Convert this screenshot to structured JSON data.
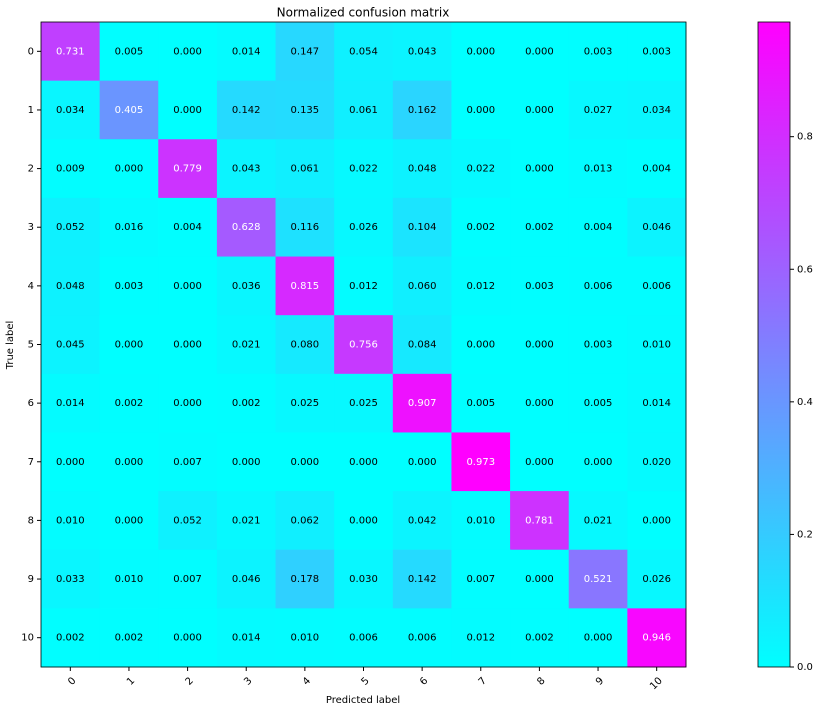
{
  "chart_data": {
    "type": "heatmap",
    "title": "Normalized confusion matrix",
    "xlabel": "Predicted label",
    "ylabel": "True label",
    "x_categories": [
      "0",
      "1",
      "2",
      "3",
      "4",
      "5",
      "6",
      "7",
      "8",
      "9",
      "10"
    ],
    "y_categories": [
      "0",
      "1",
      "2",
      "3",
      "4",
      "5",
      "6",
      "7",
      "8",
      "9",
      "10"
    ],
    "values": [
      [
        0.731,
        0.005,
        0,
        0.014,
        0.147,
        0.054,
        0.043,
        0,
        0,
        0.003,
        0.003
      ],
      [
        0.034,
        0.405,
        0,
        0.142,
        0.135,
        0.061,
        0.162,
        0,
        0,
        0.027,
        0.034
      ],
      [
        0.009,
        0,
        0.779,
        0.043,
        0.061,
        0.022,
        0.048,
        0.022,
        0,
        0.013,
        0.004
      ],
      [
        0.052,
        0.016,
        0.004,
        0.628,
        0.116,
        0.026,
        0.104,
        0.002,
        0.002,
        0.004,
        0.046
      ],
      [
        0.048,
        0.003,
        0,
        0.036,
        0.815,
        0.012,
        0.06,
        0.012,
        0.003,
        0.006,
        0.006
      ],
      [
        0.045,
        0,
        0,
        0.021,
        0.08,
        0.756,
        0.084,
        0,
        0,
        0.003,
        0.01
      ],
      [
        0.014,
        0.002,
        0,
        0.002,
        0.025,
        0.025,
        0.907,
        0.005,
        0,
        0.005,
        0.014
      ],
      [
        0,
        0,
        0.007,
        0,
        0,
        0,
        0,
        0.973,
        0,
        0,
        0.02
      ],
      [
        0.01,
        0,
        0.052,
        0.021,
        0.062,
        0,
        0.042,
        0.01,
        0.781,
        0.021,
        0
      ],
      [
        0.033,
        0.01,
        0.007,
        0.046,
        0.178,
        0.03,
        0.142,
        0.007,
        0,
        0.521,
        0.026
      ],
      [
        0.002,
        0.002,
        0,
        0.014,
        0.01,
        0.006,
        0.006,
        0.012,
        0.002,
        0,
        0.946
      ]
    ],
    "value_labels": [
      [
        "0.731",
        "0.005",
        "0.000",
        "0.014",
        "0.147",
        "0.054",
        "0.043",
        "0.000",
        "0.000",
        "0.003",
        "0.003"
      ],
      [
        "0.034",
        "0.405",
        "0.000",
        "0.142",
        "0.135",
        "0.061",
        "0.162",
        "0.000",
        "0.000",
        "0.027",
        "0.034"
      ],
      [
        "0.009",
        "0.000",
        "0.779",
        "0.043",
        "0.061",
        "0.022",
        "0.048",
        "0.022",
        "0.000",
        "0.013",
        "0.004"
      ],
      [
        "0.052",
        "0.016",
        "0.004",
        "0.628",
        "0.116",
        "0.026",
        "0.104",
        "0.002",
        "0.002",
        "0.004",
        "0.046"
      ],
      [
        "0.048",
        "0.003",
        "0.000",
        "0.036",
        "0.815",
        "0.012",
        "0.060",
        "0.012",
        "0.003",
        "0.006",
        "0.006"
      ],
      [
        "0.045",
        "0.000",
        "0.000",
        "0.021",
        "0.080",
        "0.756",
        "0.084",
        "0.000",
        "0.000",
        "0.003",
        "0.010"
      ],
      [
        "0.014",
        "0.002",
        "0.000",
        "0.002",
        "0.025",
        "0.025",
        "0.907",
        "0.005",
        "0.000",
        "0.005",
        "0.014"
      ],
      [
        "0.000",
        "0.000",
        "0.007",
        "0.000",
        "0.000",
        "0.000",
        "0.000",
        "0.973",
        "0.000",
        "0.000",
        "0.020"
      ],
      [
        "0.010",
        "0.000",
        "0.052",
        "0.021",
        "0.062",
        "0.000",
        "0.042",
        "0.010",
        "0.781",
        "0.021",
        "0.000"
      ],
      [
        "0.033",
        "0.010",
        "0.007",
        "0.046",
        "0.178",
        "0.030",
        "0.142",
        "0.007",
        "0.000",
        "0.521",
        "0.026"
      ],
      [
        "0.002",
        "0.002",
        "0.000",
        "0.014",
        "0.010",
        "0.006",
        "0.006",
        "0.012",
        "0.002",
        "0.000",
        "0.946"
      ]
    ],
    "clim": [
      0,
      0.973
    ],
    "cmap": [
      "#00ffff",
      "#ff00ff"
    ],
    "cticks": [
      {
        "value": 0,
        "label": "0.0"
      },
      {
        "value": 0.2,
        "label": "0.2"
      },
      {
        "value": 0.4,
        "label": "0.4"
      },
      {
        "value": 0.6,
        "label": "0.6"
      },
      {
        "value": 0.8,
        "label": "0.8"
      }
    ]
  }
}
